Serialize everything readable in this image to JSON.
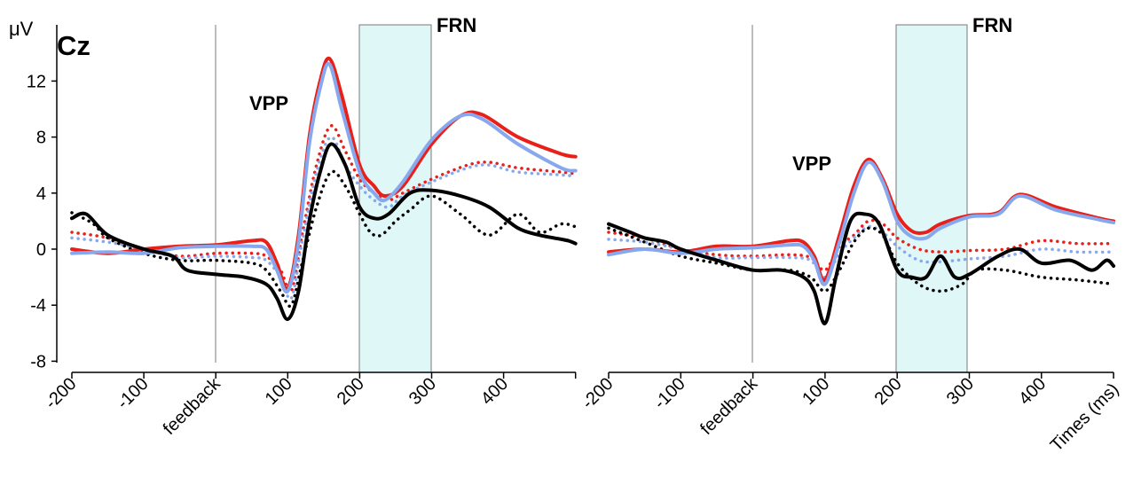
{
  "chart_data": {
    "type": "line",
    "y_unit": "μV",
    "channel": "Cz",
    "x_axis_end_label": "Times (ms)",
    "ylim": [
      -8,
      16
    ],
    "y_ticks": [
      -8,
      -4,
      0,
      4,
      8,
      12
    ],
    "y_tick_labels": [
      "-8",
      "-4",
      "0",
      "4",
      "8",
      "12"
    ],
    "xlim": [
      -200,
      500
    ],
    "x_ticks": [
      -200,
      -100,
      0,
      100,
      200,
      300,
      400,
      500
    ],
    "x_tick_labels": [
      "-200",
      "-100",
      "feedback",
      "100",
      "200",
      "300",
      "400",
      ""
    ],
    "shaded_window": {
      "label": "FRN",
      "from": 200,
      "to": 300
    },
    "vertical_marker_x": 0,
    "grid": false,
    "legend": "none",
    "panels": [
      {
        "id": "left",
        "peak_label": "VPP",
        "series": [
          {
            "color": "#e8201a",
            "style": "solid",
            "x": [
              -200,
              -150,
              -100,
              -50,
              0,
              50,
              70,
              85,
              100,
              115,
              130,
              145,
              158,
              175,
              200,
              220,
              235,
              260,
              300,
              340,
              370,
              420,
              480,
              500
            ],
            "y": [
              0,
              -0.3,
              0,
              0.2,
              0.3,
              0.6,
              0.5,
              -1,
              -2.8,
              1,
              8,
              12,
              13.6,
              11,
              6,
              4.5,
              3.8,
              4.5,
              7.5,
              9.5,
              9.6,
              8,
              6.8,
              6.6
            ]
          },
          {
            "color": "#88a8ee",
            "style": "solid",
            "x": [
              -200,
              -150,
              -100,
              -50,
              0,
              50,
              70,
              85,
              100,
              115,
              130,
              145,
              158,
              175,
              200,
              220,
              235,
              260,
              300,
              340,
              370,
              420,
              480,
              500
            ],
            "y": [
              -0.3,
              -0.2,
              -0.3,
              0.1,
              0.2,
              0.2,
              0,
              -1.5,
              -3,
              0.5,
              7.5,
              11.5,
              13.2,
              10,
              5.5,
              4,
              3.5,
              4.8,
              7.8,
              9.5,
              9.3,
              7.5,
              5.8,
              5.6
            ]
          },
          {
            "color": "#000000",
            "style": "solid",
            "x": [
              -200,
              -180,
              -150,
              -100,
              -60,
              -40,
              0,
              40,
              70,
              85,
              100,
              115,
              130,
              145,
              160,
              180,
              200,
              220,
              240,
              270,
              300,
              340,
              380,
              420,
              450,
              470,
              490,
              500
            ],
            "y": [
              2.2,
              2.5,
              1,
              0,
              -0.5,
              -1.5,
              -1.8,
              -2,
              -2.5,
              -3.5,
              -5,
              -3,
              2,
              5.5,
              7.5,
              6,
              3,
              2.2,
              2.5,
              4,
              4.2,
              3.8,
              3,
              1.5,
              1,
              0.8,
              0.6,
              0.4
            ]
          },
          {
            "color": "#e8201a",
            "style": "dotted",
            "x": [
              -200,
              -150,
              -100,
              -50,
              0,
              50,
              70,
              90,
              105,
              120,
              140,
              160,
              180,
              200,
              220,
              240,
              260,
              300,
              350,
              380,
              420,
              480,
              500
            ],
            "y": [
              1.2,
              0.8,
              0,
              -0.5,
              -0.3,
              -0.3,
              -0.5,
              -1.5,
              -3,
              1,
              6,
              8.8,
              7,
              5,
              4,
              3.5,
              4,
              5,
              6,
              6.2,
              5.8,
              5.5,
              5.4
            ]
          },
          {
            "color": "#88a8ee",
            "style": "dotted",
            "x": [
              -200,
              -150,
              -100,
              -50,
              0,
              50,
              70,
              90,
              105,
              120,
              140,
              160,
              180,
              200,
              220,
              240,
              260,
              300,
              350,
              380,
              420,
              480,
              500
            ],
            "y": [
              0.8,
              0.5,
              0,
              -0.6,
              -0.5,
              -0.6,
              -0.8,
              -2,
              -3.5,
              0.5,
              5.5,
              8,
              6,
              4.5,
              3.5,
              3,
              3.8,
              4.8,
              5.8,
              6,
              5.5,
              5.3,
              5.2
            ]
          },
          {
            "color": "#000000",
            "style": "dotted",
            "x": [
              -200,
              -170,
              -150,
              -100,
              -50,
              0,
              50,
              70,
              90,
              105,
              120,
              140,
              160,
              180,
              200,
              215,
              230,
              250,
              270,
              300,
              340,
              380,
              420,
              450,
              480,
              500
            ],
            "y": [
              2.6,
              1.8,
              0.8,
              -0.3,
              -0.8,
              -0.8,
              -1,
              -1.5,
              -3,
              -4,
              -1,
              3,
              5.5,
              4.5,
              2.5,
              1.2,
              1,
              2,
              2.8,
              3.8,
              2.5,
              1,
              2.5,
              1.2,
              1.8,
              1.6
            ]
          }
        ]
      },
      {
        "id": "right",
        "peak_label": "VPP",
        "series": [
          {
            "color": "#e8201a",
            "style": "solid",
            "x": [
              -200,
              -150,
              -100,
              -50,
              0,
              50,
              70,
              85,
              100,
              120,
              140,
              160,
              180,
              200,
              220,
              240,
              260,
              300,
              340,
              370,
              420,
              480,
              500
            ],
            "y": [
              -0.2,
              0,
              -0.2,
              0.2,
              0.2,
              0.6,
              0.5,
              -0.5,
              -2.2,
              1,
              4.5,
              6.4,
              5,
              2.5,
              1.3,
              1.2,
              1.8,
              2.4,
              2.6,
              3.9,
              3,
              2.2,
              2
            ]
          },
          {
            "color": "#88a8ee",
            "style": "solid",
            "x": [
              -200,
              -150,
              -100,
              -50,
              0,
              50,
              70,
              85,
              100,
              120,
              140,
              160,
              180,
              200,
              220,
              240,
              260,
              300,
              340,
              370,
              420,
              480,
              500
            ],
            "y": [
              -0.4,
              0,
              -0.3,
              0,
              0.1,
              0.3,
              0.2,
              -0.8,
              -2.5,
              0.5,
              4,
              6.2,
              4.8,
              2,
              0.9,
              0.8,
              1.5,
              2.3,
              2.5,
              3.8,
              2.8,
              2.1,
              1.9
            ]
          },
          {
            "color": "#000000",
            "style": "solid",
            "x": [
              -200,
              -170,
              -150,
              -120,
              -100,
              -50,
              0,
              40,
              70,
              85,
              100,
              115,
              135,
              155,
              175,
              200,
              220,
              240,
              260,
              280,
              300,
              340,
              370,
              400,
              440,
              470,
              490,
              500
            ],
            "y": [
              1.8,
              1.2,
              0.8,
              0.5,
              0,
              -0.8,
              -1.5,
              -1.5,
              -2,
              -3,
              -5.3,
              -2,
              2,
              2.5,
              1.8,
              -1.5,
              -2,
              -2,
              -0.5,
              -2,
              -1.8,
              -0.5,
              0,
              -1,
              -0.8,
              -1.5,
              -0.8,
              -1.2
            ]
          },
          {
            "color": "#e8201a",
            "style": "dotted",
            "x": [
              -200,
              -150,
              -100,
              -50,
              0,
              50,
              80,
              100,
              120,
              140,
              160,
              180,
              200,
              230,
              260,
              300,
              350,
              400,
              450,
              500
            ],
            "y": [
              1.2,
              0.8,
              0,
              -0.4,
              -0.5,
              -0.4,
              -0.6,
              -1.5,
              0.2,
              1,
              2,
              1.8,
              0.8,
              0,
              -0.2,
              -0.1,
              0,
              0.6,
              0.4,
              0.4
            ]
          },
          {
            "color": "#88a8ee",
            "style": "dotted",
            "x": [
              -200,
              -150,
              -100,
              -50,
              0,
              50,
              80,
              100,
              120,
              140,
              160,
              180,
              200,
              230,
              260,
              300,
              350,
              400,
              450,
              500
            ],
            "y": [
              0.7,
              0.5,
              0,
              -0.6,
              -0.6,
              -0.6,
              -0.8,
              -2,
              -0.3,
              0.8,
              1.6,
              1.2,
              0.2,
              -0.8,
              -0.9,
              -0.7,
              -0.5,
              0,
              -0.2,
              -0.2
            ]
          },
          {
            "color": "#000000",
            "style": "dotted",
            "x": [
              -200,
              -150,
              -100,
              -50,
              0,
              50,
              80,
              100,
              120,
              140,
              160,
              180,
              200,
              230,
              260,
              290,
              310,
              350,
              400,
              450,
              500
            ],
            "y": [
              1.5,
              0.5,
              -0.5,
              -1,
              -1.5,
              -1.5,
              -2,
              -3,
              -1.5,
              0.5,
              1.5,
              1,
              -1,
              -2.5,
              -3,
              -2.5,
              -1.5,
              -1.5,
              -2,
              -2.2,
              -2.5
            ]
          }
        ]
      }
    ]
  }
}
